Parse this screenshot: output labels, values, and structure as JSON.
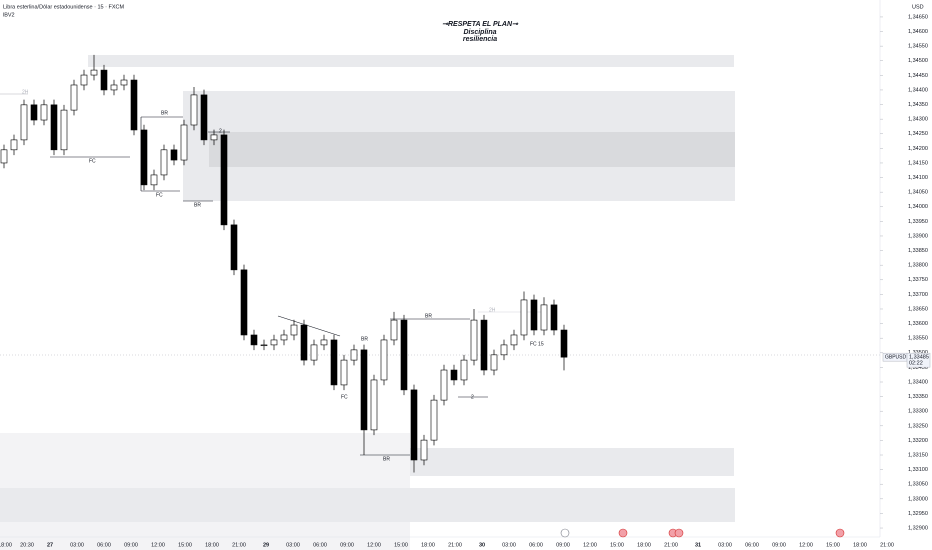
{
  "header": {
    "symbol": "Libra esterlina/Dólar estadounidense · 15 · FXCM",
    "indicator": "lBV2"
  },
  "watermark": [
    "⊸RESPETA  EL PLAN⊸",
    "Disciplina",
    "resiliencia"
  ],
  "chart_data": {
    "type": "candlestick",
    "currency": "USD",
    "ticker": "GBPUSD",
    "last_price": {
      "value": 1.33485,
      "label": "1,33485"
    },
    "countdown": "02:22",
    "up_color": "#ffffff",
    "down_color": "#000000",
    "border_color": "#000000",
    "ylim": [
      1.32859,
      1.34708
    ],
    "yticks": [
      {
        "value": 1.3465,
        "label": "1,34650"
      },
      {
        "value": 1.346,
        "label": "1,34600"
      },
      {
        "value": 1.3455,
        "label": "1,34550"
      },
      {
        "value": 1.345,
        "label": "1,34500"
      },
      {
        "value": 1.3445,
        "label": "1,34450"
      },
      {
        "value": 1.344,
        "label": "1,34400"
      },
      {
        "value": 1.3435,
        "label": "1,34350"
      },
      {
        "value": 1.343,
        "label": "1,34300"
      },
      {
        "value": 1.3425,
        "label": "1,34250"
      },
      {
        "value": 1.342,
        "label": "1,34200"
      },
      {
        "value": 1.3415,
        "label": "1,34150"
      },
      {
        "value": 1.341,
        "label": "1,34100"
      },
      {
        "value": 1.3405,
        "label": "1,34050"
      },
      {
        "value": 1.34,
        "label": "1,34000"
      },
      {
        "value": 1.3395,
        "label": "1,33950"
      },
      {
        "value": 1.339,
        "label": "1,33900"
      },
      {
        "value": 1.3385,
        "label": "1,33850"
      },
      {
        "value": 1.338,
        "label": "1,33800"
      },
      {
        "value": 1.3375,
        "label": "1,33750"
      },
      {
        "value": 1.337,
        "label": "1,33700"
      },
      {
        "value": 1.3365,
        "label": "1,33650"
      },
      {
        "value": 1.336,
        "label": "1,33600"
      },
      {
        "value": 1.3355,
        "label": "1,33550"
      },
      {
        "value": 1.335,
        "label": "1,33500"
      },
      {
        "value": 1.3345,
        "label": "1,33450"
      },
      {
        "value": 1.334,
        "label": "1,33400"
      },
      {
        "value": 1.3335,
        "label": "1,33350"
      },
      {
        "value": 1.333,
        "label": "1,33300"
      },
      {
        "value": 1.3325,
        "label": "1,33250"
      },
      {
        "value": 1.332,
        "label": "1,33200"
      },
      {
        "value": 1.3315,
        "label": "1,33150"
      },
      {
        "value": 1.331,
        "label": "1,33100"
      },
      {
        "value": 1.3305,
        "label": "1,33050"
      },
      {
        "value": 1.33,
        "label": "1,33000"
      },
      {
        "value": 1.3295,
        "label": "1,32950"
      },
      {
        "value": 1.329,
        "label": "1,32900"
      }
    ],
    "time_labels": [
      "18:00",
      "20:30",
      "27",
      "03:00",
      "06:00",
      "09:00",
      "12:00",
      "15:00",
      "18:00",
      "21:00",
      "29",
      "03:00",
      "06:00",
      "09:00",
      "12:00",
      "15:00",
      "18:00",
      "21:00",
      "30",
      "03:00",
      "06:00",
      "09:00",
      "12:00",
      "15:00",
      "18:00",
      "21:00",
      "31",
      "03:00",
      "06:00",
      "09:00",
      "12:00",
      "15:00",
      "18:00",
      "21:00"
    ],
    "open": [
      1.3415,
      1.34195,
      1.34229,
      1.34349,
      1.34297,
      1.34349,
      1.34195,
      1.34331,
      1.34417,
      1.34451,
      1.34468,
      1.344,
      1.34417,
      1.34434,
      1.34263,
      1.34075,
      1.34109,
      1.34195,
      1.3416,
      1.3428,
      1.34383,
      1.34229,
      1.34246,
      1.33938,
      1.33784,
      1.33561,
      1.33527,
      1.33527,
      1.33544,
      1.33561,
      1.33595,
      1.33475,
      1.33527,
      1.33544,
      1.3339,
      1.33475,
      1.3351,
      1.33236,
      1.33407,
      1.33544,
      1.33612,
      1.33373,
      1.33133,
      1.33201,
      1.33338,
      1.33441,
      1.33407,
      1.33475,
      1.33612,
      1.33441,
      1.33493,
      1.33527,
      1.33561,
      1.33681,
      1.33578,
      1.33664,
      1.33578
    ],
    "high": [
      1.34213,
      1.34247,
      1.34367,
      1.34367,
      1.34367,
      1.34367,
      1.34349,
      1.34435,
      1.34469,
      1.3452,
      1.34486,
      1.34435,
      1.34452,
      1.34452,
      1.34281,
      1.34127,
      1.34213,
      1.34213,
      1.34298,
      1.3441,
      1.34401,
      1.34264,
      1.34264,
      1.33956,
      1.33802,
      1.33579,
      1.33545,
      1.33562,
      1.33579,
      1.33613,
      1.33613,
      1.33545,
      1.33562,
      1.33562,
      1.33493,
      1.33528,
      1.33528,
      1.33425,
      1.33562,
      1.3364,
      1.3363,
      1.33391,
      1.33219,
      1.33356,
      1.33459,
      1.33459,
      1.33493,
      1.3365,
      1.3363,
      1.33511,
      1.33545,
      1.33579,
      1.3371,
      1.33699,
      1.3369,
      1.33682,
      1.33596
    ],
    "low": [
      1.34132,
      1.34177,
      1.34211,
      1.34279,
      1.34279,
      1.34177,
      1.34177,
      1.34313,
      1.34399,
      1.34433,
      1.34382,
      1.34382,
      1.34399,
      1.34245,
      1.34057,
      1.34057,
      1.34091,
      1.34142,
      1.34142,
      1.34262,
      1.34211,
      1.34211,
      1.3392,
      1.33766,
      1.33543,
      1.33509,
      1.33509,
      1.33509,
      1.33526,
      1.33543,
      1.33457,
      1.33457,
      1.33509,
      1.33372,
      1.33372,
      1.33457,
      1.3315,
      1.33218,
      1.33389,
      1.33526,
      1.33355,
      1.3309,
      1.33115,
      1.33183,
      1.3332,
      1.33389,
      1.33389,
      1.33457,
      1.33423,
      1.33423,
      1.33475,
      1.33509,
      1.33543,
      1.3356,
      1.3356,
      1.3356,
      1.3344
    ],
    "close": [
      1.34195,
      1.34229,
      1.34349,
      1.34297,
      1.34349,
      1.34195,
      1.34331,
      1.34417,
      1.34451,
      1.34468,
      1.344,
      1.34417,
      1.34434,
      1.34263,
      1.34075,
      1.34109,
      1.34195,
      1.3416,
      1.3428,
      1.34383,
      1.34229,
      1.34246,
      1.33938,
      1.33784,
      1.33561,
      1.33527,
      1.33527,
      1.33544,
      1.33561,
      1.33595,
      1.33475,
      1.33527,
      1.33544,
      1.3339,
      1.33475,
      1.3351,
      1.33236,
      1.33407,
      1.33544,
      1.33612,
      1.33373,
      1.33133,
      1.33201,
      1.33338,
      1.33441,
      1.33407,
      1.33475,
      1.33612,
      1.33441,
      1.33493,
      1.33527,
      1.33561,
      1.33681,
      1.33578,
      1.33664,
      1.33578,
      1.33485
    ],
    "annotations": [
      "2H",
      "BR",
      "FC",
      "FC",
      "BR",
      "2",
      "BR",
      "BR",
      "FC",
      "BR",
      "2",
      "FC 15",
      "2H"
    ]
  }
}
